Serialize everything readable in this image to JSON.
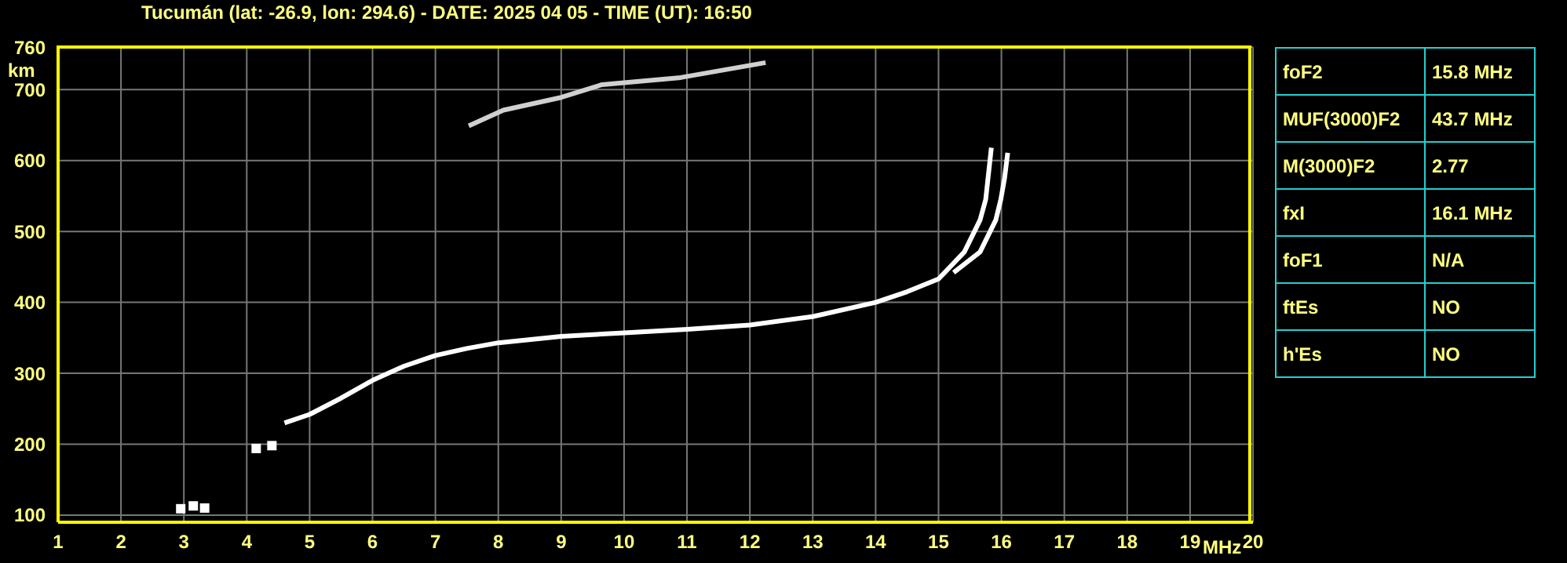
{
  "chart_data": [
    {
      "type": "line",
      "title": "Tucumán (lat: -26.9, lon: 294.6) - DATE: 2025 04 05 - TIME (UT): 16:50",
      "xlabel": "MHz",
      "ylabel": "km",
      "series": [
        {
          "color": "#ffffff",
          "x": [
            4.6,
            5,
            5.5,
            6,
            6.5,
            7,
            7.5,
            8,
            9,
            10,
            11,
            12,
            13,
            14,
            14.5,
            15,
            15.41,
            15.66,
            15.75,
            15.84
          ],
          "values": [
            230,
            242,
            265,
            290,
            310,
            325,
            335,
            343,
            352,
            357,
            362,
            368,
            380,
            400,
            415,
            433,
            471,
            516,
            545,
            618
          ]
        },
        {
          "color": "#ffffff",
          "x": [
            15.24,
            15.66,
            15.91,
            15.99,
            16.05,
            16.1
          ],
          "values": [
            442,
            471,
            516,
            545,
            575,
            611
          ]
        },
        {
          "color": "#d0d0d0",
          "x": [
            7.53,
            8.08,
            9,
            9.65,
            10.9,
            12.25
          ],
          "values": [
            649,
            671,
            689,
            707,
            717,
            738
          ]
        },
        {
          "type": "scatter",
          "marker": "square",
          "color": "#ffffff",
          "x": [
            2.95,
            3.15,
            3.33
          ],
          "values": [
            109,
            113,
            110
          ]
        },
        {
          "type": "scatter",
          "marker": "square",
          "color": "#ffffff",
          "x": [
            4.15,
            4.4
          ],
          "values": [
            194,
            198
          ]
        }
      ],
      "xlim": [
        1,
        20
      ],
      "xticks": [
        1,
        2,
        3,
        4,
        5,
        6,
        7,
        8,
        9,
        10,
        11,
        12,
        13,
        14,
        15,
        16,
        17,
        18,
        19,
        20
      ],
      "ylim": [
        90,
        760
      ],
      "yticks": [
        100,
        200,
        300,
        400,
        500,
        600,
        700,
        760
      ],
      "grid": true,
      "marker": "none",
      "line_style": "solid"
    },
    {
      "type": "other",
      "categories": [
        "foF2",
        "MUF(3000)F2",
        "M(3000)F2",
        "fxI",
        "foF1",
        "ftEs",
        "h'Es"
      ],
      "value_labels": [
        "15.8 MHz",
        "43.7 MHz",
        "2.77",
        "16.1 MHz",
        "N/A",
        "NO",
        "NO"
      ]
    }
  ]
}
